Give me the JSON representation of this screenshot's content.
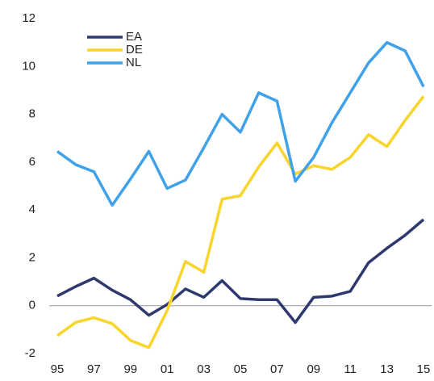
{
  "chart_data": {
    "type": "line",
    "categories": [
      "95",
      null,
      "97",
      null,
      "99",
      null,
      "01",
      null,
      "03",
      null,
      "05",
      null,
      "07",
      null,
      "09",
      null,
      "11",
      null,
      "13",
      null,
      "15"
    ],
    "series": [
      {
        "name": "EA",
        "color": "#2e3a6e",
        "values": [
          0.4,
          0.8,
          1.15,
          0.65,
          0.25,
          -0.4,
          0.05,
          0.7,
          0.35,
          1.05,
          0.3,
          0.25,
          0.25,
          -0.7,
          0.35,
          0.4,
          0.6,
          1.8,
          2.4,
          2.95,
          3.6
        ]
      },
      {
        "name": "DE",
        "color": "#f9d42a",
        "values": [
          -1.25,
          -0.7,
          -0.5,
          -0.75,
          -1.45,
          -1.75,
          -0.2,
          1.85,
          1.4,
          4.45,
          4.6,
          5.8,
          6.8,
          5.5,
          5.85,
          5.7,
          6.2,
          7.15,
          6.65,
          7.75,
          8.75
        ]
      },
      {
        "name": "NL",
        "color": "#3fa2e8",
        "values": [
          6.45,
          5.9,
          5.6,
          4.2,
          5.3,
          6.45,
          4.9,
          5.25,
          6.6,
          8.0,
          7.25,
          8.9,
          8.55,
          5.2,
          6.2,
          7.65,
          8.9,
          10.15,
          11.0,
          10.65,
          9.15
        ]
      }
    ],
    "ylim": [
      -2,
      12
    ],
    "yticks": [
      -2,
      0,
      2,
      4,
      6,
      8,
      10,
      12
    ],
    "grid": false,
    "legend": "upper-left"
  }
}
